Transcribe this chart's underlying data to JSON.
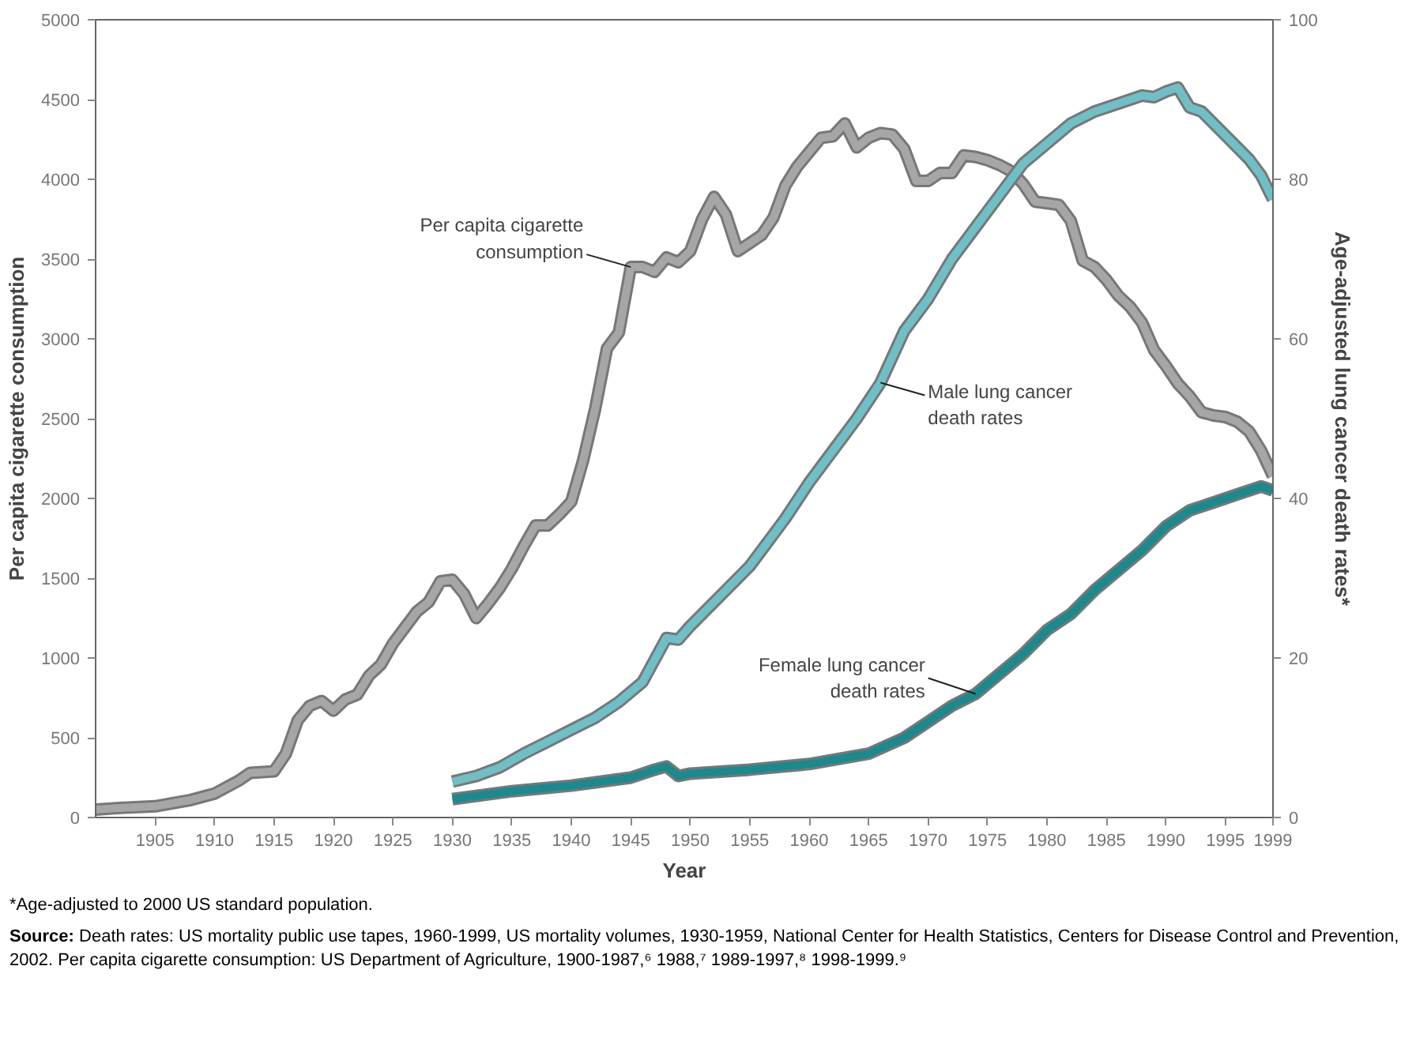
{
  "chart_data": {
    "type": "line",
    "xlabel": "Year",
    "ylabel": "Per capita cigarette consumption",
    "y2label": "Age-adjusted lung cancer death rates*",
    "xlim": [
      1900,
      1999
    ],
    "xticks": [
      1905,
      1910,
      1915,
      1920,
      1925,
      1930,
      1935,
      1940,
      1945,
      1950,
      1955,
      1960,
      1965,
      1970,
      1975,
      1980,
      1985,
      1990,
      1995,
      1999
    ],
    "ylim": [
      0,
      5000
    ],
    "yticks": [
      0,
      500,
      1000,
      1500,
      2000,
      2500,
      3000,
      3500,
      4000,
      4500,
      5000
    ],
    "y2lim": [
      0,
      100
    ],
    "y2ticks": [
      0,
      20,
      40,
      60,
      80,
      100
    ],
    "series": [
      {
        "name": "Per capita cigarette consumption",
        "color": "#a6a6a6",
        "x": [
          1900,
          1902,
          1905,
          1908,
          1910,
          1912,
          1913,
          1915,
          1916,
          1917,
          1918,
          1919,
          1920,
          1921,
          1922,
          1923,
          1924,
          1925,
          1926,
          1927,
          1928,
          1929,
          1930,
          1931,
          1932,
          1933,
          1934,
          1935,
          1936,
          1937,
          1938,
          1939,
          1940,
          1941,
          1942,
          1943,
          1944,
          1945,
          1946,
          1947,
          1948,
          1949,
          1950,
          1951,
          1952,
          1953,
          1954,
          1955,
          1956,
          1957,
          1958,
          1959,
          1960,
          1961,
          1962,
          1963,
          1964,
          1965,
          1966,
          1967,
          1968,
          1969,
          1970,
          1971,
          1972,
          1973,
          1974,
          1975,
          1976,
          1977,
          1978,
          1979,
          1980,
          1981,
          1982,
          1983,
          1984,
          1985,
          1986,
          1987,
          1988,
          1989,
          1990,
          1991,
          1992,
          1993,
          1994,
          1995,
          1996,
          1997,
          1998,
          1999
        ],
        "values": [
          50,
          60,
          70,
          110,
          150,
          230,
          280,
          290,
          400,
          610,
          700,
          730,
          670,
          740,
          770,
          890,
          960,
          1090,
          1190,
          1290,
          1350,
          1480,
          1490,
          1400,
          1250,
          1340,
          1440,
          1560,
          1700,
          1830,
          1830,
          1900,
          1980,
          2240,
          2560,
          2940,
          3040,
          3450,
          3450,
          3420,
          3510,
          3480,
          3550,
          3750,
          3890,
          3780,
          3550,
          3600,
          3650,
          3760,
          3960,
          4080,
          4170,
          4260,
          4270,
          4350,
          4200,
          4260,
          4290,
          4280,
          4190,
          3990,
          3990,
          4040,
          4040,
          4150,
          4140,
          4120,
          4090,
          4050,
          3970,
          3860,
          3850,
          3840,
          3740,
          3490,
          3450,
          3370,
          3270,
          3200,
          3100,
          2930,
          2830,
          2720,
          2640,
          2540,
          2520,
          2510,
          2480,
          2420,
          2300,
          2140
        ]
      },
      {
        "name": "Male lung cancer death rates",
        "color": "#6fbfc7",
        "axis": "y2",
        "x": [
          1930,
          1932,
          1934,
          1936,
          1938,
          1940,
          1942,
          1944,
          1946,
          1948,
          1949,
          1950,
          1952,
          1955,
          1957,
          1958,
          1960,
          1962,
          1964,
          1966,
          1968,
          1970,
          1972,
          1974,
          1976,
          1978,
          1980,
          1982,
          1984,
          1986,
          1988,
          1989,
          1990,
          1991,
          1992,
          1993,
          1995,
          1997,
          1998,
          1999
        ],
        "values": [
          4.5,
          5.2,
          6.3,
          8,
          9.5,
          11,
          12.5,
          14.5,
          17,
          22.5,
          22.3,
          24,
          27,
          31.5,
          35.5,
          37.5,
          42,
          46,
          50,
          54.5,
          61,
          65,
          70,
          74,
          78,
          82,
          84.5,
          87,
          88.5,
          89.5,
          90.5,
          90.3,
          91,
          91.5,
          89,
          88.5,
          85.5,
          82.5,
          80.5,
          77.5
        ]
      },
      {
        "name": "Female lung cancer death rates",
        "color": "#1a8a8e",
        "axis": "y2",
        "x": [
          1930,
          1935,
          1940,
          1945,
          1947,
          1948,
          1949,
          1950,
          1955,
          1960,
          1965,
          1968,
          1970,
          1972,
          1974,
          1976,
          1978,
          1980,
          1982,
          1984,
          1986,
          1988,
          1990,
          1992,
          1994,
          1996,
          1998,
          1999
        ],
        "values": [
          2.3,
          3.3,
          4,
          5,
          6,
          6.4,
          5.2,
          5.5,
          6,
          6.7,
          8,
          10,
          12,
          14,
          15.5,
          18,
          20.5,
          23.5,
          25.5,
          28.5,
          31,
          33.5,
          36.5,
          38.5,
          39.5,
          40.5,
          41.5,
          41
        ]
      }
    ],
    "annotations": [
      "*Age-adjusted to 2000 US standard population.",
      "Source: Death rates: US mortality public use tapes, 1960-1999, US mortality volumes, 1930-1959, National Center for Health Statistics, Centers for Disease Control and Prevention, 2002. Per capita cigarette consumption: US Department of Agriculture, 1900-1987,⁶ 1988,⁷ 1989-1997,⁸ 1998-1999.⁹"
    ],
    "grid": false
  }
}
